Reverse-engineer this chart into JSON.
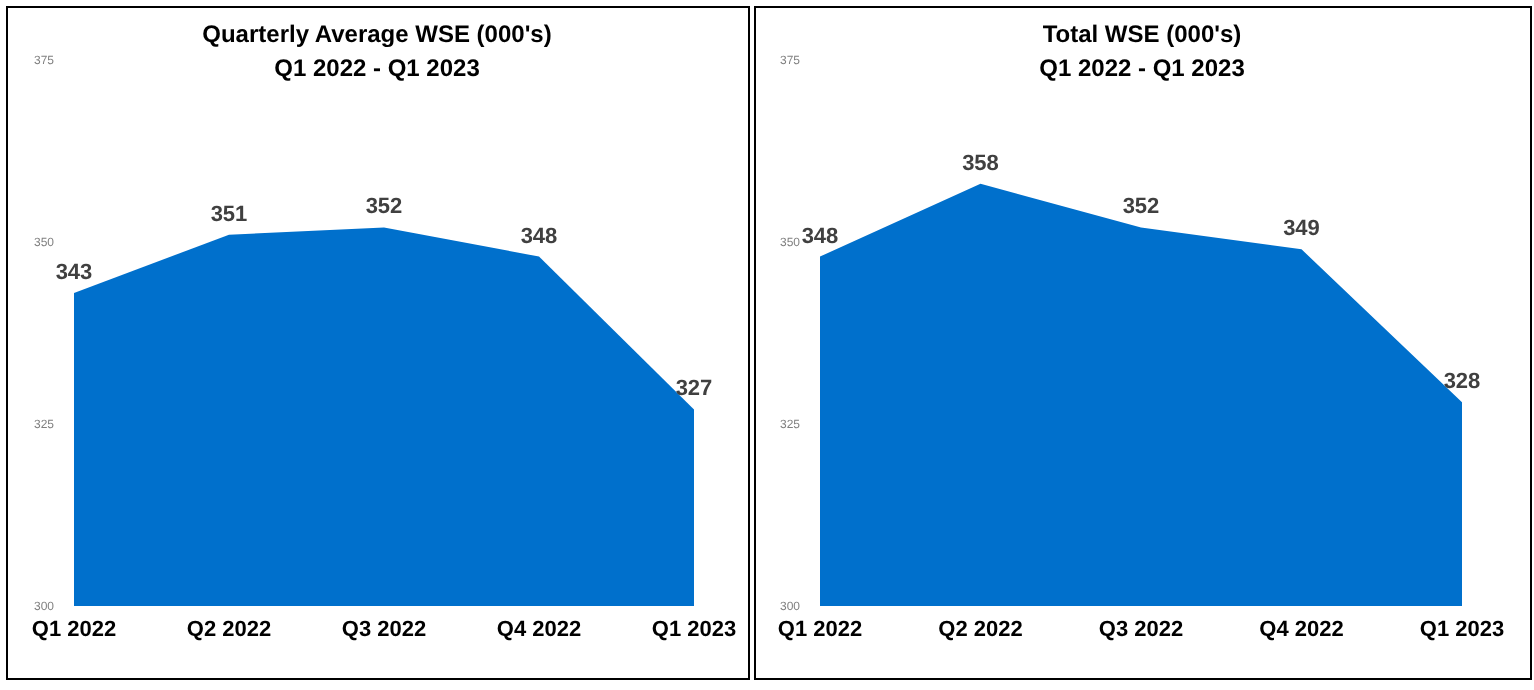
{
  "chart_data": [
    {
      "type": "area",
      "title": "Quarterly Average WSE (000's)",
      "subtitle": "Q1 2022 - Q1 2023",
      "categories": [
        "Q1 2022",
        "Q2 2022",
        "Q3 2022",
        "Q4 2022",
        "Q1 2023"
      ],
      "values": [
        343,
        351,
        352,
        348,
        327
      ],
      "color": "#0070cc",
      "ylim": [
        300,
        375
      ],
      "yticks": [
        300,
        325,
        350,
        375
      ],
      "data_labels": true,
      "grid": false,
      "legend": false
    },
    {
      "type": "area",
      "title": "Total WSE (000's)",
      "subtitle": "Q1 2022 - Q1 2023",
      "categories": [
        "Q1 2022",
        "Q2 2022",
        "Q3 2022",
        "Q4 2022",
        "Q1 2023"
      ],
      "values": [
        348,
        358,
        352,
        349,
        328
      ],
      "color": "#0070cc",
      "ylim": [
        300,
        375
      ],
      "yticks": [
        300,
        325,
        350,
        375
      ],
      "data_labels": true,
      "grid": false,
      "legend": false
    }
  ]
}
